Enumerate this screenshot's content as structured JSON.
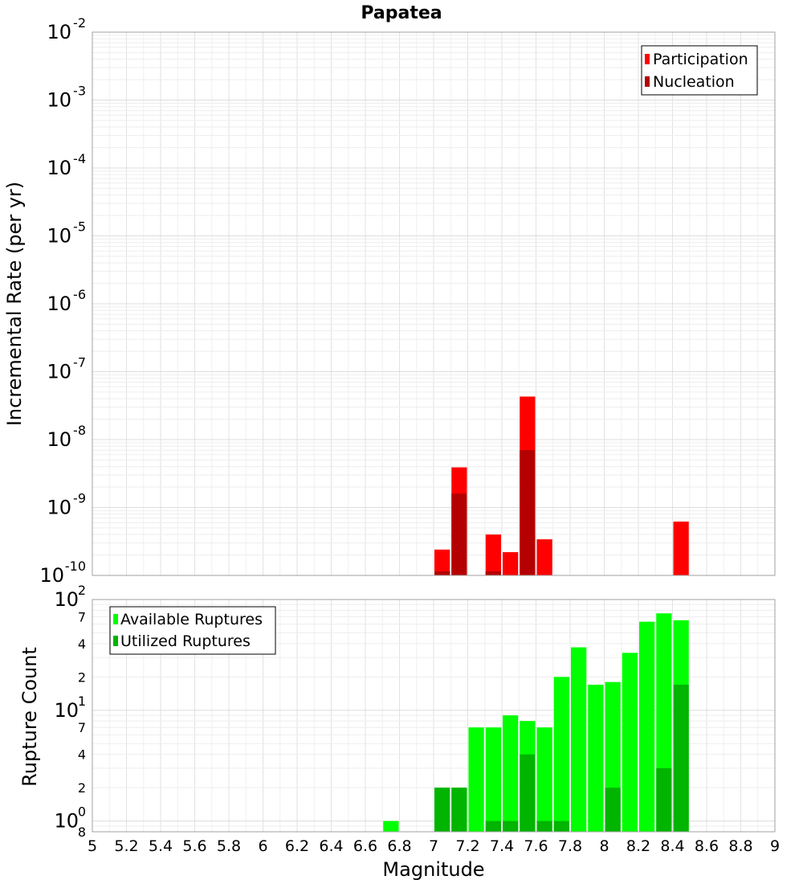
{
  "chart_data": [
    {
      "type": "bar",
      "panel": "top",
      "title": "Papatea",
      "ylabel": "Incremental Rate (per yr)",
      "yscale": "log",
      "ylim": [
        1e-10,
        0.01
      ],
      "xlim": [
        5,
        9
      ],
      "bin_width": 0.1,
      "grid": true,
      "legend_placement": "top-right",
      "series": [
        {
          "name": "Participation",
          "color": "#ff0000",
          "x": [
            7.05,
            7.15,
            7.35,
            7.45,
            7.55,
            7.65,
            8.45
          ],
          "values": [
            2.4e-10,
            3.9e-09,
            4e-10,
            2.2e-10,
            4.3e-08,
            3.4e-10,
            6.2e-10
          ]
        },
        {
          "name": "Nucleation",
          "color": "#b40000",
          "x": [
            7.05,
            7.15,
            7.35,
            7.55
          ],
          "values": [
            1.15e-10,
            1.6e-09,
            1.15e-10,
            7e-09
          ]
        }
      ]
    },
    {
      "type": "bar",
      "panel": "bottom",
      "xlabel": "Magnitude",
      "ylabel": "Rupture Count",
      "yscale": "log",
      "ylim": [
        0.8,
        100
      ],
      "xlim": [
        5,
        9
      ],
      "bin_width": 0.1,
      "grid": true,
      "legend_placement": "top-left",
      "series": [
        {
          "name": "Available Ruptures",
          "color": "#00ff00",
          "x": [
            6.75,
            7.05,
            7.15,
            7.25,
            7.35,
            7.45,
            7.55,
            7.65,
            7.75,
            7.85,
            7.95,
            8.05,
            8.15,
            8.25,
            8.35,
            8.45
          ],
          "values": [
            1,
            2,
            2,
            7,
            7,
            9,
            8,
            7,
            20,
            37,
            17,
            18,
            33,
            63,
            75,
            65
          ]
        },
        {
          "name": "Utilized Ruptures",
          "color": "#00b400",
          "x": [
            7.05,
            7.15,
            7.35,
            7.45,
            7.55,
            7.65,
            7.75,
            8.05,
            8.35,
            8.45
          ],
          "values": [
            2,
            2,
            1,
            1,
            4,
            1,
            1,
            2,
            3,
            17
          ]
        }
      ]
    }
  ],
  "x_ticks": [
    "5",
    "5.2",
    "5.4",
    "5.6",
    "5.8",
    "6",
    "6.2",
    "6.4",
    "6.6",
    "6.8",
    "7",
    "7.2",
    "7.4",
    "7.6",
    "7.8",
    "8",
    "8.2",
    "8.4",
    "8.6",
    "8.8",
    "9"
  ],
  "top_y_ticks": [
    {
      "base": "10",
      "exp": "-2"
    },
    {
      "base": "10",
      "exp": "-3"
    },
    {
      "base": "10",
      "exp": "-4"
    },
    {
      "base": "10",
      "exp": "-5"
    },
    {
      "base": "10",
      "exp": "-6"
    },
    {
      "base": "10",
      "exp": "-7"
    },
    {
      "base": "10",
      "exp": "-8"
    },
    {
      "base": "10",
      "exp": "-9"
    },
    {
      "base": "10",
      "exp": "-10"
    }
  ],
  "bottom_y_ticks": {
    "major": [
      {
        "base": "10",
        "exp": "2"
      },
      {
        "base": "10",
        "exp": "1"
      },
      {
        "base": "10",
        "exp": "0"
      }
    ],
    "minor": [
      "7",
      "4",
      "2",
      "7",
      "4",
      "2",
      "8"
    ]
  }
}
